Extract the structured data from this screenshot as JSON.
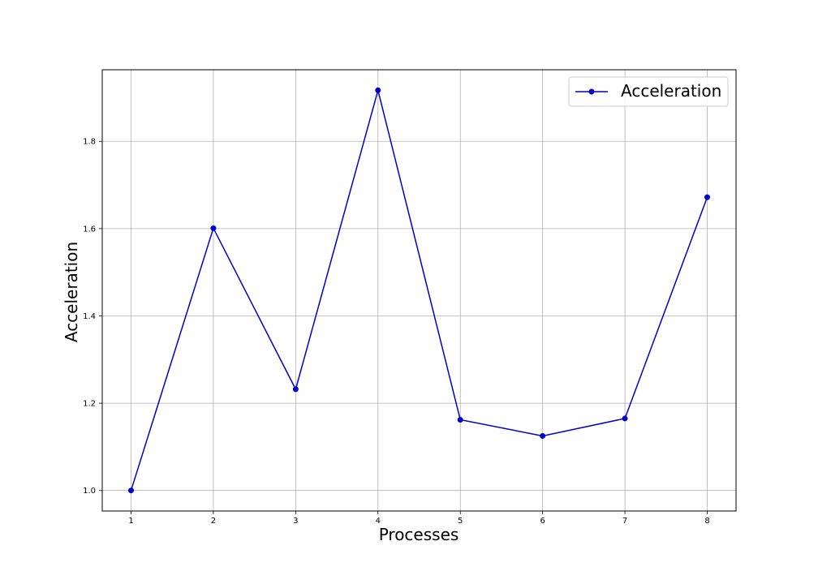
{
  "chart_data": {
    "type": "line",
    "title": "",
    "xlabel": "Processes",
    "ylabel": "Acceleration",
    "x": [
      1,
      2,
      3,
      4,
      5,
      6,
      7,
      8
    ],
    "series": [
      {
        "name": "Acceleration",
        "values": [
          1.0,
          1.601,
          1.232,
          1.917,
          1.162,
          1.125,
          1.165,
          1.672
        ],
        "color": "#0000cc",
        "marker": "circle"
      }
    ],
    "xticks": [
      "1",
      "2",
      "3",
      "4",
      "5",
      "6",
      "7",
      "8"
    ],
    "yticks": [
      "1.0",
      "1.2",
      "1.4",
      "1.6",
      "1.8"
    ],
    "xlim": [
      0.65,
      8.35
    ],
    "ylim": [
      0.953,
      1.964
    ],
    "grid": true,
    "legend_position": "top-right"
  }
}
